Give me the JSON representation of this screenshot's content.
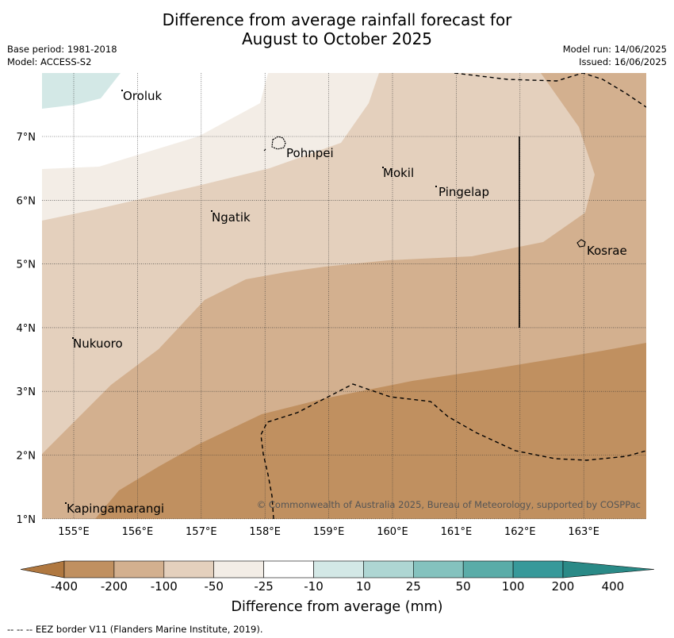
{
  "title_line1": "Difference from average rainfall forecast for",
  "title_line2": "August to October 2025",
  "meta": {
    "base_period": "Base period: 1981-2018",
    "model": "Model: ACCESS-S2",
    "model_run": "Model run: 14/06/2025",
    "issued": "Issued: 16/06/2025"
  },
  "map": {
    "lon_ticks": [
      "155°E",
      "156°E",
      "157°E",
      "158°E",
      "159°E",
      "160°E",
      "161°E",
      "162°E",
      "163°E"
    ],
    "lat_ticks": [
      "7°N",
      "6°N",
      "5°N",
      "4°N",
      "3°N",
      "2°N",
      "1°N"
    ],
    "places": [
      "Oroluk",
      "Pohnpei",
      "Mokil",
      "Pingelap",
      "Ngatik",
      "Kosrae",
      "Nukuoro",
      "Kapingamarangi"
    ],
    "copyright": "© Commonwealth of Australia 2025, Bureau of Meteorology, supported by COSPPac"
  },
  "colorbar": {
    "labels": [
      "-400",
      "-200",
      "-100",
      "-50",
      "-25",
      "-10",
      "10",
      "25",
      "50",
      "100",
      "200",
      "400"
    ],
    "colors": [
      "#b07840",
      "#c09060",
      "#d3b08f",
      "#e4d0bd",
      "#f3ede6",
      "#ffffff",
      "#d3e8e6",
      "#aed6d3",
      "#84c2be",
      "#5aaca8",
      "#37999a",
      "#2a8a87"
    ],
    "title": "Difference from average (mm)"
  },
  "footer": "--  --  -- EEZ border V11 (Flanders Marine Institute, 2019)."
}
